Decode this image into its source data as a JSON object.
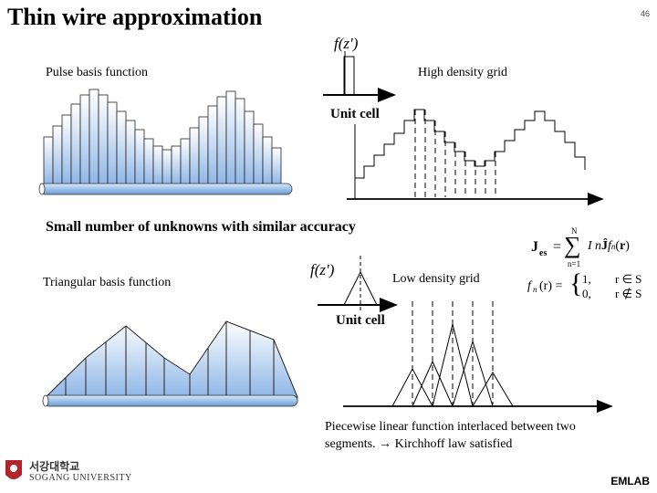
{
  "slide": {
    "title": "Thin wire approximation",
    "page_number": "46"
  },
  "pulse": {
    "label": "Pulse basis function",
    "density_label": "High density grid",
    "unit_cell": "Unit cell",
    "fz": "f(z′)"
  },
  "middle": {
    "text": "Small number of unknowns with similar accuracy"
  },
  "triangle": {
    "label": "Triangular basis function",
    "density_label": "Low density grid",
    "unit_cell": "Unit cell",
    "fz": "f(z′)",
    "note": "Piecewise linear function interlaced between two segments. → Kirchhoff law satisfied"
  },
  "equations": {
    "j_lhs": "J",
    "j_sub": "es",
    "sum_top": "N",
    "sum_bottom": "n=1",
    "j_rhs": "I",
    "f_lhs": "f",
    "f_arg": "(r) =",
    "case1_val": "1,",
    "case1_cond": "r ∈ S",
    "case0_val": "0,",
    "case0_cond": "r ∉ S",
    "sub_n": "n"
  },
  "footer": {
    "university_korean": "서강대학교",
    "university_english": "SOGANG UNIVERSITY",
    "lab": "EMLAB"
  },
  "colors": {
    "bar_fill_top": "#ffffff",
    "bar_fill_bottom": "#8fb6e6",
    "rod": "#9fc3ea"
  }
}
